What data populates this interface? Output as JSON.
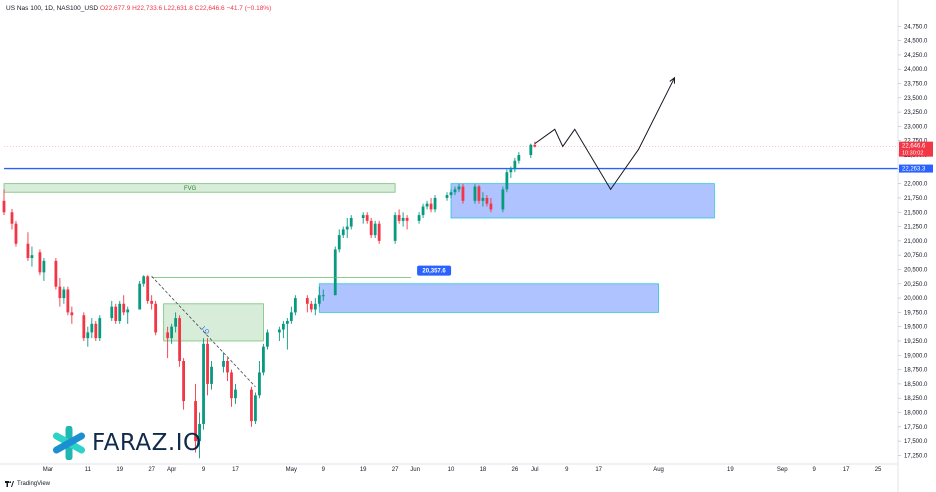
{
  "header": {
    "symbol": "US Nas 100, 1D, NAS100_USD",
    "ohlc": "O22,677.9  H22,733.6  L22,631.8  C22,646.6  −41.7 (−0.18%)"
  },
  "branding": {
    "watermark": "FARAZ.IO",
    "footer": "TradingView"
  },
  "chart_data": {
    "type": "candlestick",
    "title": "",
    "xlabel": "",
    "ylabel": "",
    "ylim": [
      17100,
      25000
    ],
    "y_ticks": [
      17250,
      17500,
      17750,
      18000,
      18250,
      18500,
      18750,
      19000,
      19250,
      19500,
      19750,
      20000,
      20250,
      20500,
      20750,
      21000,
      21250,
      21500,
      21750,
      22000,
      22250,
      22500,
      22750,
      23000,
      23250,
      23500,
      23750,
      24000,
      24250,
      24500,
      24750
    ],
    "y_tick_labels": [
      "17,250.0",
      "17,500.0",
      "17,750.0",
      "18,000.0",
      "18,250.0",
      "18,500.0",
      "18,750.0",
      "19,000.0",
      "19,250.0",
      "19,500.0",
      "19,750.0",
      "20,000.0",
      "20,250.0",
      "20,500.0",
      "20,750.0",
      "21,000.0",
      "21,250.0",
      "21,500.0",
      "21,750.0",
      "22,000.0",
      "22,250.0",
      "22,500.0",
      "22,750.0",
      "23,000.0",
      "23,250.0",
      "23,500.0",
      "23,750.0",
      "24,000.0",
      "24,250.0",
      "24,500.0",
      "24,750.0"
    ],
    "x_range": [
      "2025-02-18",
      "2025-09-30"
    ],
    "x_ticks": [
      {
        "date": "2025-03-01",
        "label": "Mar"
      },
      {
        "date": "2025-03-11",
        "label": "11"
      },
      {
        "date": "2025-03-19",
        "label": "19"
      },
      {
        "date": "2025-03-27",
        "label": "27"
      },
      {
        "date": "2025-04-01",
        "label": "Apr"
      },
      {
        "date": "2025-04-09",
        "label": "9"
      },
      {
        "date": "2025-04-17",
        "label": "17"
      },
      {
        "date": "2025-05-01",
        "label": "May"
      },
      {
        "date": "2025-05-09",
        "label": "9"
      },
      {
        "date": "2025-05-19",
        "label": "19"
      },
      {
        "date": "2025-05-27",
        "label": "27"
      },
      {
        "date": "2025-06-01",
        "label": "Jun"
      },
      {
        "date": "2025-06-10",
        "label": "10"
      },
      {
        "date": "2025-06-18",
        "label": "18"
      },
      {
        "date": "2025-06-26",
        "label": "26"
      },
      {
        "date": "2025-07-01",
        "label": "Jul"
      },
      {
        "date": "2025-07-09",
        "label": "9"
      },
      {
        "date": "2025-07-17",
        "label": "17"
      },
      {
        "date": "2025-08-01",
        "label": "Aug"
      },
      {
        "date": "2025-08-19",
        "label": "19"
      },
      {
        "date": "2025-09-01",
        "label": "Sep"
      },
      {
        "date": "2025-09-09",
        "label": "9"
      },
      {
        "date": "2025-09-17",
        "label": "17"
      },
      {
        "date": "2025-09-25",
        "label": "25"
      }
    ],
    "candles": [
      {
        "date": "2025-02-18",
        "o": 21700,
        "h": 21900,
        "l": 21450,
        "c": 21500
      },
      {
        "date": "2025-02-20",
        "o": 21500,
        "h": 21560,
        "l": 21200,
        "c": 21300
      },
      {
        "date": "2025-02-21",
        "o": 21300,
        "h": 21350,
        "l": 20900,
        "c": 20950
      },
      {
        "date": "2025-02-24",
        "o": 20950,
        "h": 21150,
        "l": 20650,
        "c": 20700
      },
      {
        "date": "2025-02-25",
        "o": 20700,
        "h": 20900,
        "l": 20550,
        "c": 20750
      },
      {
        "date": "2025-02-27",
        "o": 20800,
        "h": 20850,
        "l": 20400,
        "c": 20450
      },
      {
        "date": "2025-02-28",
        "o": 20450,
        "h": 20700,
        "l": 20300,
        "c": 20650
      },
      {
        "date": "2025-03-03",
        "o": 20650,
        "h": 20700,
        "l": 20150,
        "c": 20200
      },
      {
        "date": "2025-03-04",
        "o": 20200,
        "h": 20350,
        "l": 19850,
        "c": 20000
      },
      {
        "date": "2025-03-05",
        "o": 20000,
        "h": 20200,
        "l": 19900,
        "c": 20150
      },
      {
        "date": "2025-03-06",
        "o": 20150,
        "h": 20200,
        "l": 19700,
        "c": 19750
      },
      {
        "date": "2025-03-07",
        "o": 19750,
        "h": 19850,
        "l": 19550,
        "c": 19700
      },
      {
        "date": "2025-03-10",
        "o": 19700,
        "h": 19750,
        "l": 19250,
        "c": 19300
      },
      {
        "date": "2025-03-11",
        "o": 19300,
        "h": 19500,
        "l": 19150,
        "c": 19400
      },
      {
        "date": "2025-03-12",
        "o": 19400,
        "h": 19650,
        "l": 19300,
        "c": 19550
      },
      {
        "date": "2025-03-13",
        "o": 19550,
        "h": 19600,
        "l": 19250,
        "c": 19300
      },
      {
        "date": "2025-03-14",
        "o": 19300,
        "h": 19700,
        "l": 19250,
        "c": 19650
      },
      {
        "date": "2025-03-17",
        "o": 19650,
        "h": 19950,
        "l": 19600,
        "c": 19850
      },
      {
        "date": "2025-03-18",
        "o": 19850,
        "h": 19900,
        "l": 19550,
        "c": 19600
      },
      {
        "date": "2025-03-19",
        "o": 19600,
        "h": 19950,
        "l": 19550,
        "c": 19900
      },
      {
        "date": "2025-03-20",
        "o": 19900,
        "h": 20050,
        "l": 19700,
        "c": 19750
      },
      {
        "date": "2025-03-21",
        "o": 19750,
        "h": 19850,
        "l": 19550,
        "c": 19800
      },
      {
        "date": "2025-03-24",
        "o": 19800,
        "h": 20300,
        "l": 19800,
        "c": 20250
      },
      {
        "date": "2025-03-25",
        "o": 20250,
        "h": 20400,
        "l": 20200,
        "c": 20380
      },
      {
        "date": "2025-03-26",
        "o": 20380,
        "h": 20400,
        "l": 19900,
        "c": 19950
      },
      {
        "date": "2025-03-27",
        "o": 19950,
        "h": 20050,
        "l": 19800,
        "c": 19900
      },
      {
        "date": "2025-03-28",
        "o": 19900,
        "h": 19950,
        "l": 19350,
        "c": 19400
      },
      {
        "date": "2025-03-31",
        "o": 19400,
        "h": 19500,
        "l": 18950,
        "c": 19300
      },
      {
        "date": "2025-04-01",
        "o": 19300,
        "h": 19550,
        "l": 19200,
        "c": 19500
      },
      {
        "date": "2025-04-02",
        "o": 19500,
        "h": 19750,
        "l": 19400,
        "c": 19650
      },
      {
        "date": "2025-04-03",
        "o": 19650,
        "h": 19700,
        "l": 18800,
        "c": 18900
      },
      {
        "date": "2025-04-04",
        "o": 18900,
        "h": 18950,
        "l": 18050,
        "c": 18200
      },
      {
        "date": "2025-04-07",
        "o": 18200,
        "h": 18500,
        "l": 17300,
        "c": 17500
      },
      {
        "date": "2025-04-08",
        "o": 17500,
        "h": 18000,
        "l": 17200,
        "c": 17800
      },
      {
        "date": "2025-04-09",
        "o": 17800,
        "h": 19300,
        "l": 17700,
        "c": 19200
      },
      {
        "date": "2025-04-10",
        "o": 19200,
        "h": 19300,
        "l": 18300,
        "c": 18500
      },
      {
        "date": "2025-04-11",
        "o": 18500,
        "h": 18900,
        "l": 18400,
        "c": 18800
      },
      {
        "date": "2025-04-14",
        "o": 18800,
        "h": 19050,
        "l": 18700,
        "c": 18900
      },
      {
        "date": "2025-04-15",
        "o": 18900,
        "h": 18950,
        "l": 18550,
        "c": 18700
      },
      {
        "date": "2025-04-16",
        "o": 18700,
        "h": 18750,
        "l": 18100,
        "c": 18250
      },
      {
        "date": "2025-04-17",
        "o": 18250,
        "h": 18500,
        "l": 18150,
        "c": 18400
      },
      {
        "date": "2025-04-21",
        "o": 18400,
        "h": 18450,
        "l": 17750,
        "c": 17850
      },
      {
        "date": "2025-04-22",
        "o": 17850,
        "h": 18350,
        "l": 17800,
        "c": 18300
      },
      {
        "date": "2025-04-23",
        "o": 18300,
        "h": 18900,
        "l": 18250,
        "c": 18700
      },
      {
        "date": "2025-04-24",
        "o": 18700,
        "h": 19200,
        "l": 18650,
        "c": 19150
      },
      {
        "date": "2025-04-25",
        "o": 19150,
        "h": 19450,
        "l": 19100,
        "c": 19400
      },
      {
        "date": "2025-04-28",
        "o": 19400,
        "h": 19500,
        "l": 19250,
        "c": 19450
      },
      {
        "date": "2025-04-29",
        "o": 19450,
        "h": 19600,
        "l": 19300,
        "c": 19550
      },
      {
        "date": "2025-04-30",
        "o": 19550,
        "h": 19650,
        "l": 19100,
        "c": 19600
      },
      {
        "date": "2025-05-01",
        "o": 19600,
        "h": 19850,
        "l": 19550,
        "c": 19750
      },
      {
        "date": "2025-05-02",
        "o": 19750,
        "h": 20050,
        "l": 19700,
        "c": 20000
      },
      {
        "date": "2025-05-05",
        "o": 20000,
        "h": 20050,
        "l": 19750,
        "c": 19900
      },
      {
        "date": "2025-05-06",
        "o": 19900,
        "h": 19950,
        "l": 19750,
        "c": 19800
      },
      {
        "date": "2025-05-07",
        "o": 19800,
        "h": 20000,
        "l": 19700,
        "c": 19900
      },
      {
        "date": "2025-05-08",
        "o": 19900,
        "h": 20200,
        "l": 19850,
        "c": 20050
      },
      {
        "date": "2025-05-09",
        "o": 20050,
        "h": 20150,
        "l": 19950,
        "c": 20050
      },
      {
        "date": "2025-05-12",
        "o": 20050,
        "h": 20900,
        "l": 20050,
        "c": 20850
      },
      {
        "date": "2025-05-13",
        "o": 20850,
        "h": 21200,
        "l": 20800,
        "c": 21100
      },
      {
        "date": "2025-05-14",
        "o": 21100,
        "h": 21250,
        "l": 21050,
        "c": 21200
      },
      {
        "date": "2025-05-15",
        "o": 21200,
        "h": 21400,
        "l": 21050,
        "c": 21250
      },
      {
        "date": "2025-05-16",
        "o": 21250,
        "h": 21450,
        "l": 21200,
        "c": 21400
      },
      {
        "date": "2025-05-19",
        "o": 21400,
        "h": 21500,
        "l": 21300,
        "c": 21450
      },
      {
        "date": "2025-05-20",
        "o": 21450,
        "h": 21500,
        "l": 21300,
        "c": 21350
      },
      {
        "date": "2025-05-21",
        "o": 21350,
        "h": 21400,
        "l": 21050,
        "c": 21100
      },
      {
        "date": "2025-05-22",
        "o": 21100,
        "h": 21350,
        "l": 21050,
        "c": 21300
      },
      {
        "date": "2025-05-23",
        "o": 21300,
        "h": 21350,
        "l": 20950,
        "c": 21000
      },
      {
        "date": "2025-05-27",
        "o": 21000,
        "h": 21500,
        "l": 20950,
        "c": 21450
      },
      {
        "date": "2025-05-28",
        "o": 21450,
        "h": 21550,
        "l": 21300,
        "c": 21350
      },
      {
        "date": "2025-05-29",
        "o": 21350,
        "h": 21500,
        "l": 21250,
        "c": 21400
      },
      {
        "date": "2025-05-30",
        "o": 21400,
        "h": 21450,
        "l": 21200,
        "c": 21350
      },
      {
        "date": "2025-06-02",
        "o": 21350,
        "h": 21500,
        "l": 21300,
        "c": 21450
      },
      {
        "date": "2025-06-03",
        "o": 21450,
        "h": 21650,
        "l": 21400,
        "c": 21600
      },
      {
        "date": "2025-06-04",
        "o": 21600,
        "h": 21700,
        "l": 21550,
        "c": 21650
      },
      {
        "date": "2025-06-05",
        "o": 21650,
        "h": 21750,
        "l": 21500,
        "c": 21550
      },
      {
        "date": "2025-06-06",
        "o": 21550,
        "h": 21800,
        "l": 21500,
        "c": 21750
      },
      {
        "date": "2025-06-09",
        "o": 21750,
        "h": 21850,
        "l": 21700,
        "c": 21800
      },
      {
        "date": "2025-06-10",
        "o": 21800,
        "h": 21900,
        "l": 21750,
        "c": 21850
      },
      {
        "date": "2025-06-11",
        "o": 21850,
        "h": 21950,
        "l": 21800,
        "c": 21900
      },
      {
        "date": "2025-06-12",
        "o": 21900,
        "h": 22000,
        "l": 21850,
        "c": 21950
      },
      {
        "date": "2025-06-13",
        "o": 21950,
        "h": 22000,
        "l": 21650,
        "c": 21700
      },
      {
        "date": "2025-06-16",
        "o": 21700,
        "h": 22000,
        "l": 21650,
        "c": 21950
      },
      {
        "date": "2025-06-17",
        "o": 21950,
        "h": 21980,
        "l": 21650,
        "c": 21700
      },
      {
        "date": "2025-06-18",
        "o": 21700,
        "h": 21850,
        "l": 21600,
        "c": 21750
      },
      {
        "date": "2025-06-19",
        "o": 21750,
        "h": 21800,
        "l": 21600,
        "c": 21650
      },
      {
        "date": "2025-06-20",
        "o": 21650,
        "h": 21750,
        "l": 21500,
        "c": 21550
      },
      {
        "date": "2025-06-23",
        "o": 21550,
        "h": 21950,
        "l": 21500,
        "c": 21900
      },
      {
        "date": "2025-06-24",
        "o": 21900,
        "h": 22250,
        "l": 21850,
        "c": 22200
      },
      {
        "date": "2025-06-25",
        "o": 22200,
        "h": 22300,
        "l": 22100,
        "c": 22250
      },
      {
        "date": "2025-06-26",
        "o": 22250,
        "h": 22450,
        "l": 22200,
        "c": 22400
      },
      {
        "date": "2025-06-27",
        "o": 22400,
        "h": 22550,
        "l": 22350,
        "c": 22500
      },
      {
        "date": "2025-06-30",
        "o": 22500,
        "h": 22700,
        "l": 22450,
        "c": 22680
      },
      {
        "date": "2025-07-01",
        "o": 22678,
        "h": 22734,
        "l": 22632,
        "c": 22647
      }
    ],
    "zones": [
      {
        "kind": "fvg",
        "label": "FVG",
        "from": "2025-02-18",
        "to": "2025-05-27",
        "y_low": 21850,
        "y_high": 22000
      },
      {
        "kind": "fvg",
        "label": "",
        "from": "2025-03-30",
        "to": "2025-04-24",
        "y_low": 19250,
        "y_high": 19900
      },
      {
        "kind": "demand",
        "label": "",
        "from": "2025-06-10",
        "to": "2025-08-15",
        "y_low": 21400,
        "y_high": 22000
      },
      {
        "kind": "demand",
        "label": "",
        "from": "2025-05-08",
        "to": "2025-08-01",
        "y_low": 19750,
        "y_high": 20250
      }
    ],
    "level_lines": [
      {
        "kind": "horizontal",
        "value": 22263.3,
        "label": "22,263.3",
        "color": "#2962ff"
      },
      {
        "kind": "current",
        "value": 22646.6,
        "label": "22,646.6",
        "countdown": "10:30:02",
        "color": "#f23645"
      }
    ],
    "segments": [
      {
        "kind": "level",
        "from": "2025-03-27",
        "to": "2025-05-31",
        "value": 20357.6,
        "label": "20,357.6"
      },
      {
        "kind": "trendline",
        "label": "LQ",
        "points": [
          [
            "2025-03-27",
            20380
          ],
          [
            "2025-04-22",
            18450
          ]
        ]
      }
    ],
    "projection_path": [
      [
        "2025-07-01",
        22700
      ],
      [
        "2025-07-06",
        22950
      ],
      [
        "2025-07-08",
        22650
      ],
      [
        "2025-07-11",
        22950
      ],
      [
        "2025-07-20",
        21900
      ],
      [
        "2025-07-27",
        22600
      ],
      [
        "2025-08-05",
        23850
      ]
    ],
    "colors": {
      "up": "#089981",
      "down": "#f23645",
      "fvg": "#43a047",
      "demand": "#2962ff"
    }
  }
}
